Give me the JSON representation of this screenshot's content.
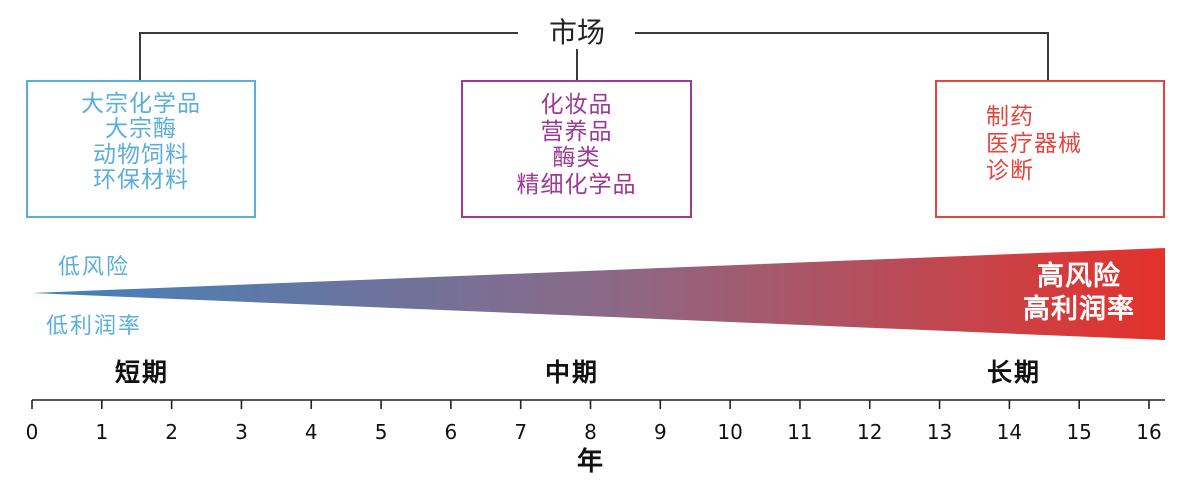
{
  "market": {
    "title": "市场"
  },
  "segments": [
    {
      "items": [
        "大宗化学品",
        "大宗酶",
        "动物饲料",
        "环保材料"
      ],
      "color": "#5aaedc"
    },
    {
      "items": [
        "化妆品",
        "营养品",
        "酶类",
        "精细化学品"
      ],
      "color": "#9e3996"
    },
    {
      "items": [
        "制药",
        "医疗器械",
        "诊断"
      ],
      "color": "#e2473f"
    }
  ],
  "risk_profile": {
    "low_risk": "低风险",
    "low_margin": "低利润率",
    "high_risk": "高风险",
    "high_margin": "高利润率",
    "low_color": "#5aaedc",
    "high_text_color": "#ffffff",
    "gradient_colors": [
      "#3f82bd",
      "#8a6a88",
      "#e4312b"
    ]
  },
  "phases": {
    "short": "短期",
    "mid": "中期",
    "long": "长期"
  },
  "year_axis": {
    "ticks": [
      0,
      1,
      2,
      3,
      4,
      5,
      6,
      7,
      8,
      9,
      10,
      11,
      12,
      13,
      14,
      15,
      16
    ],
    "label": "年"
  }
}
